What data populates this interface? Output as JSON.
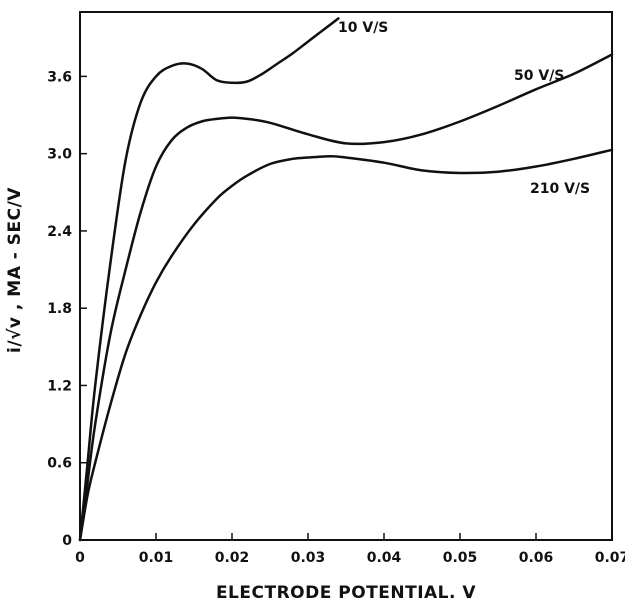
{
  "chart_data": {
    "type": "line",
    "title": "",
    "xlabel": "ELECTRODE POTENTIAL. V",
    "ylabel": "i/√v , MA - SEC/V",
    "xlim": [
      0,
      0.07
    ],
    "ylim": [
      0,
      4.1
    ],
    "x_ticks": [
      0,
      0.01,
      0.02,
      0.03,
      0.04,
      0.05,
      0.06,
      0.07
    ],
    "x_tick_labels": [
      "0",
      "0.01",
      "0.02",
      "0.03",
      "0.04",
      "0.05",
      "0.06",
      "0.07"
    ],
    "y_ticks": [
      0,
      0.6,
      1.2,
      1.8,
      2.4,
      3.0,
      3.6
    ],
    "y_tick_labels": [
      "0",
      "0.6",
      "1.2",
      "1.8",
      "2.4",
      "3.0",
      "3.6"
    ],
    "grid": false,
    "legend": "none",
    "line_color": "#111111",
    "series": [
      {
        "name": "10 V/S",
        "x": [
          0,
          0.001,
          0.002,
          0.004,
          0.006,
          0.008,
          0.01,
          0.012,
          0.014,
          0.016,
          0.018,
          0.02,
          0.022,
          0.024,
          0.026,
          0.028,
          0.03,
          0.032,
          0.034
        ],
        "y": [
          0,
          0.6,
          1.2,
          2.15,
          2.95,
          3.4,
          3.6,
          3.68,
          3.7,
          3.66,
          3.57,
          3.55,
          3.56,
          3.62,
          3.7,
          3.78,
          3.87,
          3.96,
          4.05
        ]
      },
      {
        "name": "50 V/S",
        "x": [
          0,
          0.001,
          0.002,
          0.004,
          0.006,
          0.008,
          0.01,
          0.012,
          0.014,
          0.016,
          0.018,
          0.02,
          0.022,
          0.025,
          0.03,
          0.035,
          0.04,
          0.045,
          0.05,
          0.055,
          0.06,
          0.065,
          0.07
        ],
        "y": [
          0,
          0.45,
          0.9,
          1.6,
          2.1,
          2.55,
          2.9,
          3.1,
          3.2,
          3.25,
          3.27,
          3.28,
          3.27,
          3.24,
          3.15,
          3.08,
          3.09,
          3.15,
          3.25,
          3.37,
          3.5,
          3.62,
          3.77
        ]
      },
      {
        "name": "210 V/S",
        "x": [
          0,
          0.001,
          0.002,
          0.004,
          0.006,
          0.008,
          0.01,
          0.012,
          0.015,
          0.018,
          0.02,
          0.022,
          0.025,
          0.028,
          0.03,
          0.033,
          0.035,
          0.04,
          0.045,
          0.05,
          0.055,
          0.06,
          0.065,
          0.07
        ],
        "y": [
          0,
          0.35,
          0.6,
          1.05,
          1.45,
          1.75,
          2.0,
          2.2,
          2.45,
          2.65,
          2.75,
          2.83,
          2.92,
          2.96,
          2.97,
          2.98,
          2.97,
          2.93,
          2.87,
          2.85,
          2.86,
          2.9,
          2.96,
          3.03
        ]
      }
    ]
  }
}
